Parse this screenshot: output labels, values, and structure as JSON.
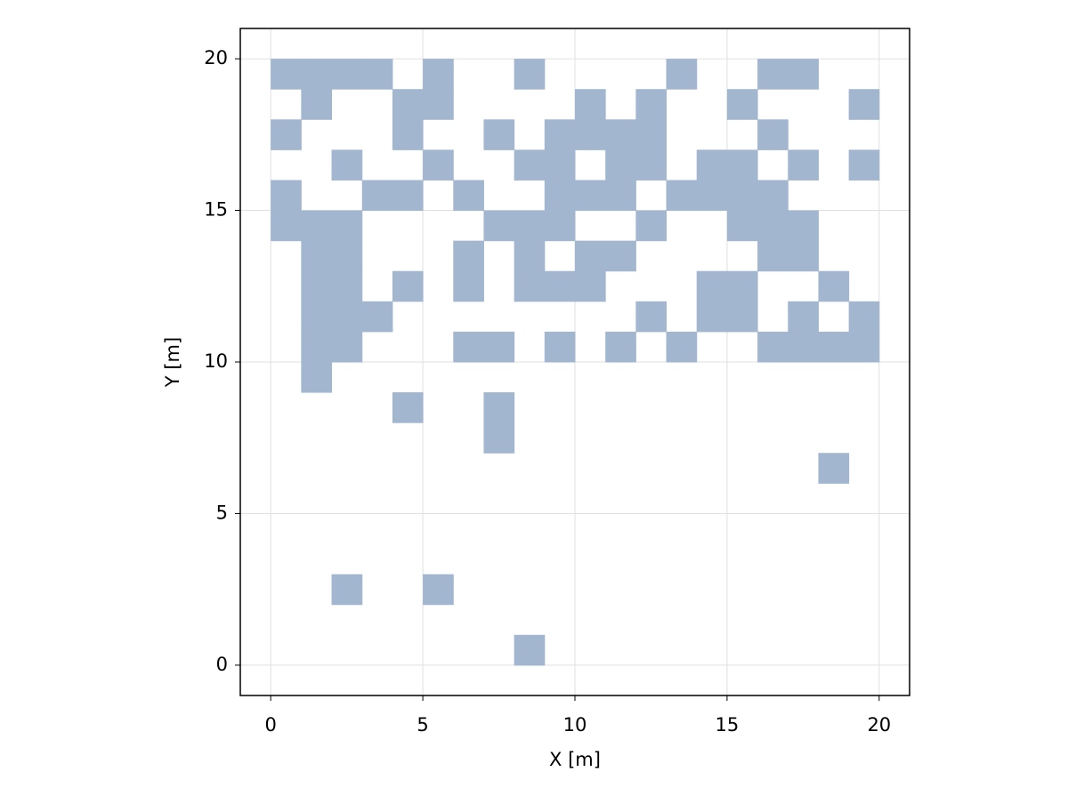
{
  "chart_data": {
    "type": "heatmap",
    "xlabel": "X [m]",
    "ylabel": "Y [m]",
    "color": "#a2b7cf",
    "grid": true,
    "xlim": [
      -1,
      21
    ],
    "ylim": [
      -1,
      21
    ],
    "xticks": [
      0,
      5,
      10,
      15,
      20
    ],
    "yticks": [
      0,
      5,
      10,
      15,
      20
    ],
    "x": [
      0,
      1,
      2,
      3,
      5,
      8,
      13,
      16,
      17,
      1,
      4,
      5,
      10,
      12,
      15,
      19,
      0,
      4,
      7,
      9,
      10,
      11,
      12,
      16,
      2,
      5,
      8,
      9,
      11,
      12,
      14,
      15,
      17,
      19,
      0,
      3,
      4,
      6,
      9,
      10,
      11,
      13,
      14,
      15,
      16,
      0,
      1,
      2,
      7,
      8,
      9,
      12,
      15,
      16,
      17,
      1,
      2,
      6,
      8,
      10,
      11,
      16,
      17,
      1,
      2,
      4,
      6,
      8,
      9,
      10,
      14,
      15,
      18,
      1,
      2,
      3,
      12,
      14,
      15,
      17,
      19,
      1,
      2,
      6,
      7,
      9,
      11,
      13,
      16,
      17,
      18,
      19,
      1,
      4,
      7,
      7,
      18,
      2,
      5,
      8
    ],
    "y": [
      19,
      19,
      19,
      19,
      19,
      19,
      19,
      19,
      19,
      18,
      18,
      18,
      18,
      18,
      18,
      18,
      17,
      17,
      17,
      17,
      17,
      17,
      17,
      17,
      16,
      16,
      16,
      16,
      16,
      16,
      16,
      16,
      16,
      16,
      15,
      15,
      15,
      15,
      15,
      15,
      15,
      15,
      15,
      15,
      15,
      14,
      14,
      14,
      14,
      14,
      14,
      14,
      14,
      14,
      14,
      13,
      13,
      13,
      13,
      13,
      13,
      13,
      13,
      12,
      12,
      12,
      12,
      12,
      12,
      12,
      12,
      12,
      12,
      11,
      11,
      11,
      11,
      11,
      11,
      11,
      11,
      10,
      10,
      10,
      10,
      10,
      10,
      10,
      10,
      10,
      10,
      10,
      9,
      8,
      8,
      7,
      6,
      2,
      2,
      0
    ]
  }
}
